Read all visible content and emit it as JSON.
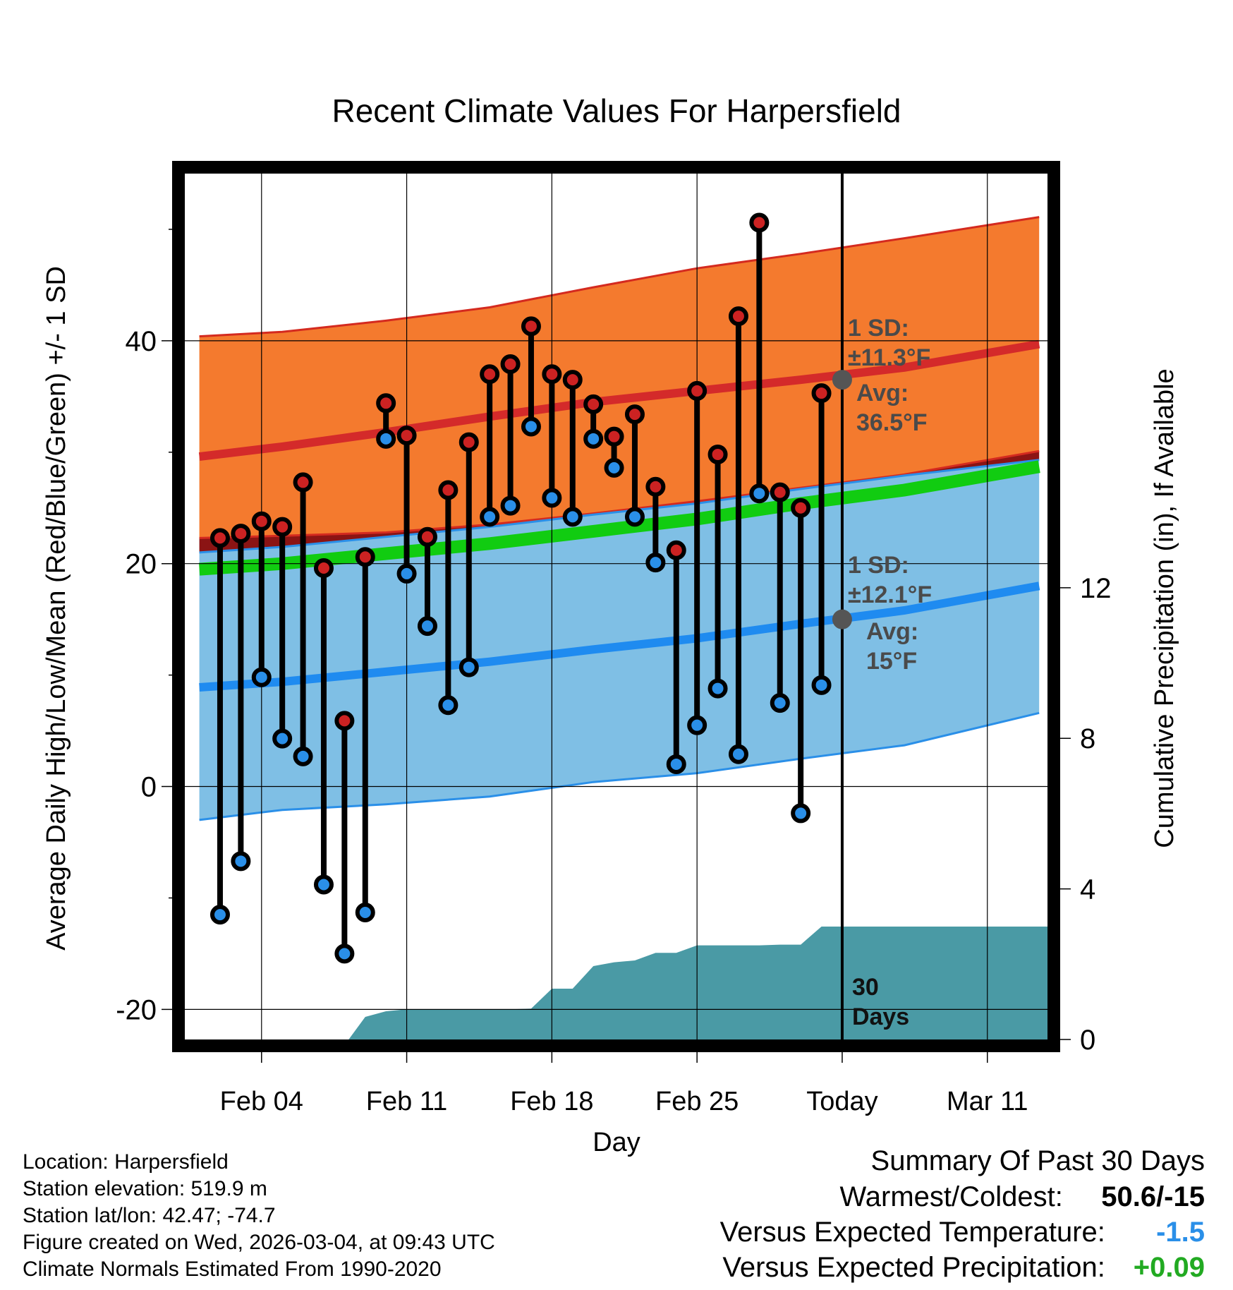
{
  "chart_data": {
    "type": "line",
    "title": "Recent Climate Values For Harpersfield",
    "xlabel": "Day",
    "ylabel": "Average Daily High/Low/Mean (Red/Blue/Green) +/- 1 SD",
    "ylabel_right": "Cumulative Precipitation (in), If Available",
    "x_ticks": [
      "Feb 04",
      "Feb 11",
      "Feb 18",
      "Feb 25",
      "Today",
      "Mar 11"
    ],
    "x_tick_days": [
      4,
      11,
      18,
      25,
      32,
      39
    ],
    "xlim": [
      0.3,
      41.9
    ],
    "today_day": 32,
    "ylim": [
      -22.7,
      55
    ],
    "y_ticks": [
      -20,
      0,
      20,
      40
    ],
    "y_tick_labels": [
      "-20",
      "0",
      "20",
      "40"
    ],
    "precip_ticks": [
      0,
      4,
      8,
      12
    ],
    "precip_tick_labels": [
      "0",
      "4",
      "8",
      "12"
    ],
    "precip_range": [
      0,
      23
    ],
    "normals": {
      "days": [
        1,
        5,
        10,
        15,
        20,
        25,
        30,
        35,
        41.5
      ],
      "high_avg": [
        29.6,
        30.5,
        31.8,
        33.2,
        34.5,
        35.5,
        36.5,
        37.6,
        39.7
      ],
      "high_upper": [
        40.4,
        40.8,
        41.8,
        43.0,
        44.8,
        46.5,
        47.8,
        49.2,
        51.1
      ],
      "high_lower": [
        22.3,
        22.5,
        22.8,
        23.5,
        24.5,
        25.6,
        26.8,
        28.0,
        30.1
      ],
      "low_avg": [
        8.9,
        9.4,
        10.3,
        11.2,
        12.3,
        13.3,
        14.6,
        15.8,
        18.0
      ],
      "low_upper": [
        21.0,
        21.5,
        22.4,
        23.3,
        24.4,
        25.4,
        26.7,
        27.9,
        29.3
      ],
      "low_lower": [
        -3.0,
        -2.1,
        -1.6,
        -0.9,
        0.4,
        1.2,
        2.5,
        3.7,
        6.6
      ],
      "mean_avg": [
        19.5,
        20.0,
        20.9,
        21.8,
        22.9,
        24.0,
        25.4,
        26.6,
        28.7
      ]
    },
    "series": [
      {
        "name": "High",
        "color": "#cc2222",
        "x": [
          2,
          3,
          4,
          5,
          6,
          7,
          8,
          9,
          10,
          11,
          12,
          13,
          14,
          15,
          16,
          17,
          18,
          19,
          20,
          21,
          22,
          23,
          24,
          25,
          26,
          27,
          28,
          29,
          30,
          31
        ],
        "values": [
          22.3,
          22.7,
          23.8,
          23.3,
          27.3,
          19.6,
          5.9,
          20.6,
          34.4,
          31.5,
          22.4,
          26.6,
          30.9,
          37.0,
          37.9,
          41.3,
          37.0,
          36.5,
          34.3,
          31.4,
          33.4,
          26.9,
          21.2,
          35.5,
          29.8,
          42.2,
          50.6,
          26.4,
          25.0,
          35.3
        ]
      },
      {
        "name": "Low",
        "color": "#2a8fe8",
        "x": [
          2,
          3,
          4,
          5,
          6,
          7,
          8,
          9,
          10,
          11,
          12,
          13,
          14,
          15,
          16,
          17,
          18,
          19,
          20,
          21,
          22,
          23,
          24,
          25,
          26,
          27,
          28,
          29,
          30,
          31
        ],
        "values": [
          -11.5,
          -6.7,
          9.8,
          4.3,
          2.7,
          -8.8,
          -15.0,
          -11.3,
          31.2,
          19.1,
          14.4,
          7.3,
          10.7,
          24.2,
          25.2,
          32.3,
          25.9,
          24.2,
          31.2,
          28.6,
          24.2,
          20.1,
          2.0,
          5.5,
          8.8,
          2.9,
          26.3,
          7.5,
          -2.4,
          9.1
        ]
      }
    ],
    "precip": {
      "name": "Cumulative Precipitation",
      "color": "#4a9aa5",
      "x": [
        8.2,
        9.0,
        10.0,
        11.0,
        12.0,
        13.0,
        14.0,
        15.0,
        16.0,
        17.0,
        18.0,
        19.0,
        20.0,
        21.0,
        22.0,
        23.0,
        24.0,
        25.0,
        26.0,
        27.0,
        28.0,
        29.0,
        30.0,
        31.0,
        32.0,
        41.9
      ],
      "values": [
        0,
        0.6,
        0.75,
        0.8,
        0.8,
        0.8,
        0.8,
        0.8,
        0.8,
        0.82,
        1.35,
        1.35,
        1.95,
        2.05,
        2.1,
        2.3,
        2.3,
        2.5,
        2.5,
        2.5,
        2.5,
        2.52,
        2.52,
        3.0,
        3.0,
        3.0
      ]
    },
    "annotations": {
      "high_sd": "1 SD:",
      "high_sd_value": "±11.3°F",
      "high_avg_label": "Avg:",
      "high_avg_value": "36.5°F",
      "high_avg_today": 36.5,
      "low_sd": "1 SD:",
      "low_sd_value": "±12.1°F",
      "low_avg_label": "Avg:",
      "low_avg_value": "15°F",
      "low_avg_today": 15,
      "days_num": "30",
      "days_word": "Days"
    }
  },
  "info": {
    "location": "Location: Harpersfield",
    "elevation": "Station elevation: 519.9 m",
    "latlon": "Station lat/lon: 42.47; -74.7",
    "created": "Figure created on Wed, 2026-03-04, at 09:43 UTC",
    "normals": "Climate Normals Estimated From 1990-2020"
  },
  "summary": {
    "title": "Summary Of Past 30 Days",
    "warmest_label": "Warmest/Coldest:",
    "warmest_value": "50.6/-15",
    "temp_label": "Versus Expected Temperature:",
    "temp_value": "-1.5",
    "temp_color": "#2a8fe8",
    "precip_label": "Versus Expected Precipitation:",
    "precip_value": "+0.09",
    "precip_color": "#22aa22"
  }
}
